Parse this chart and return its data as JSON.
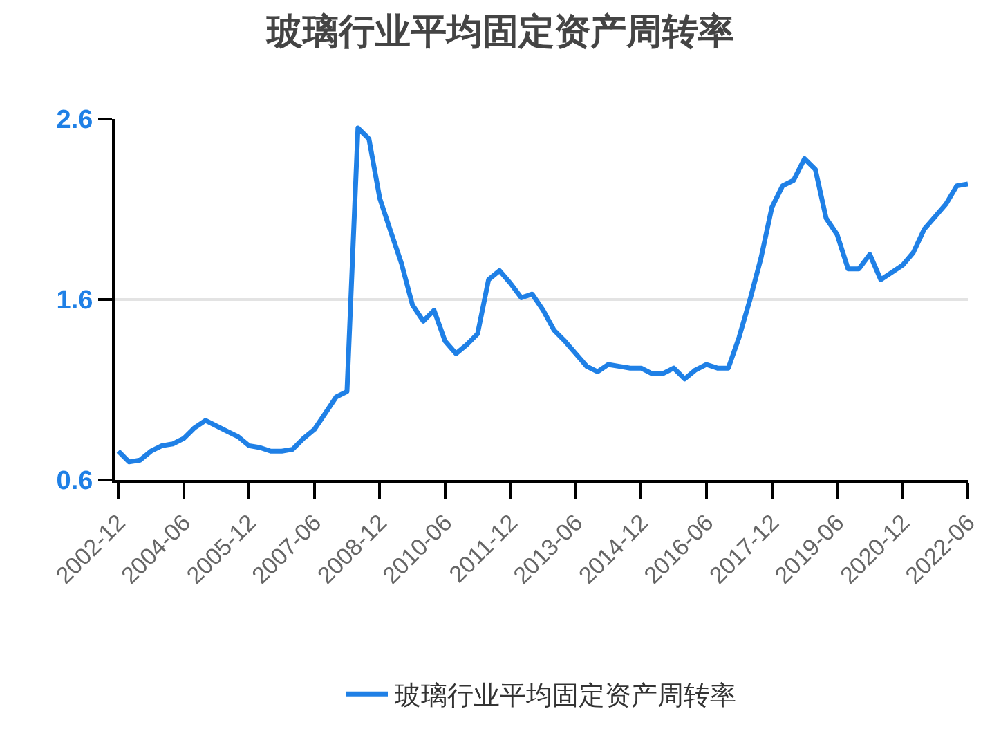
{
  "chart_data": {
    "type": "line",
    "title": "玻璃行业平均固定资产周转率",
    "x": [
      "2002-12",
      "2003-03",
      "2003-06",
      "2003-09",
      "2003-12",
      "2004-03",
      "2004-06",
      "2004-09",
      "2004-12",
      "2005-03",
      "2005-06",
      "2005-09",
      "2005-12",
      "2006-03",
      "2006-06",
      "2006-09",
      "2006-12",
      "2007-03",
      "2007-06",
      "2007-09",
      "2007-12",
      "2008-03",
      "2008-06",
      "2008-09",
      "2008-12",
      "2009-03",
      "2009-06",
      "2009-09",
      "2009-12",
      "2010-03",
      "2010-06",
      "2010-09",
      "2010-12",
      "2011-03",
      "2011-06",
      "2011-09",
      "2011-12",
      "2012-03",
      "2012-06",
      "2012-09",
      "2012-12",
      "2013-03",
      "2013-06",
      "2013-09",
      "2013-12",
      "2014-03",
      "2014-06",
      "2014-09",
      "2014-12",
      "2015-03",
      "2015-06",
      "2015-09",
      "2015-12",
      "2016-03",
      "2016-06",
      "2016-09",
      "2016-12",
      "2017-03",
      "2017-06",
      "2017-09",
      "2017-12",
      "2018-03",
      "2018-06",
      "2018-09",
      "2018-12",
      "2019-03",
      "2019-06",
      "2019-09",
      "2019-12",
      "2020-03",
      "2020-06",
      "2020-09",
      "2020-12",
      "2021-03",
      "2021-06",
      "2021-09",
      "2021-12",
      "2022-03",
      "2022-06"
    ],
    "series": [
      {
        "name": "玻璃行业平均固定资产周转率",
        "color": "#1f80e6",
        "values": [
          0.76,
          0.7,
          0.71,
          0.76,
          0.79,
          0.8,
          0.83,
          0.89,
          0.93,
          0.9,
          0.87,
          0.84,
          0.79,
          0.78,
          0.76,
          0.76,
          0.77,
          0.83,
          0.88,
          0.97,
          1.06,
          1.09,
          2.55,
          2.49,
          2.16,
          1.98,
          1.8,
          1.57,
          1.48,
          1.54,
          1.37,
          1.3,
          1.35,
          1.41,
          1.71,
          1.76,
          1.69,
          1.61,
          1.63,
          1.54,
          1.43,
          1.37,
          1.3,
          1.23,
          1.2,
          1.24,
          1.23,
          1.22,
          1.22,
          1.19,
          1.19,
          1.22,
          1.16,
          1.21,
          1.24,
          1.22,
          1.22,
          1.39,
          1.6,
          1.83,
          2.11,
          2.23,
          2.26,
          2.38,
          2.32,
          2.05,
          1.96,
          1.77,
          1.77,
          1.85,
          1.71,
          1.75,
          1.79,
          1.86,
          1.99,
          2.06,
          2.13,
          2.23,
          2.24
        ]
      }
    ],
    "xlim": [
      "2002-11",
      "2022-06"
    ],
    "xticks": [
      "2002-12",
      "2004-06",
      "2005-12",
      "2007-06",
      "2008-12",
      "2010-06",
      "2011-12",
      "2013-06",
      "2014-12",
      "2016-06",
      "2017-12",
      "2019-06",
      "2020-12",
      "2022-06"
    ],
    "ylim": [
      0.6,
      2.6
    ],
    "yticks": [
      0.6,
      1.6,
      2.6
    ],
    "grid": "y",
    "legend": "bottom",
    "marker": "none",
    "line_style": "solid"
  }
}
